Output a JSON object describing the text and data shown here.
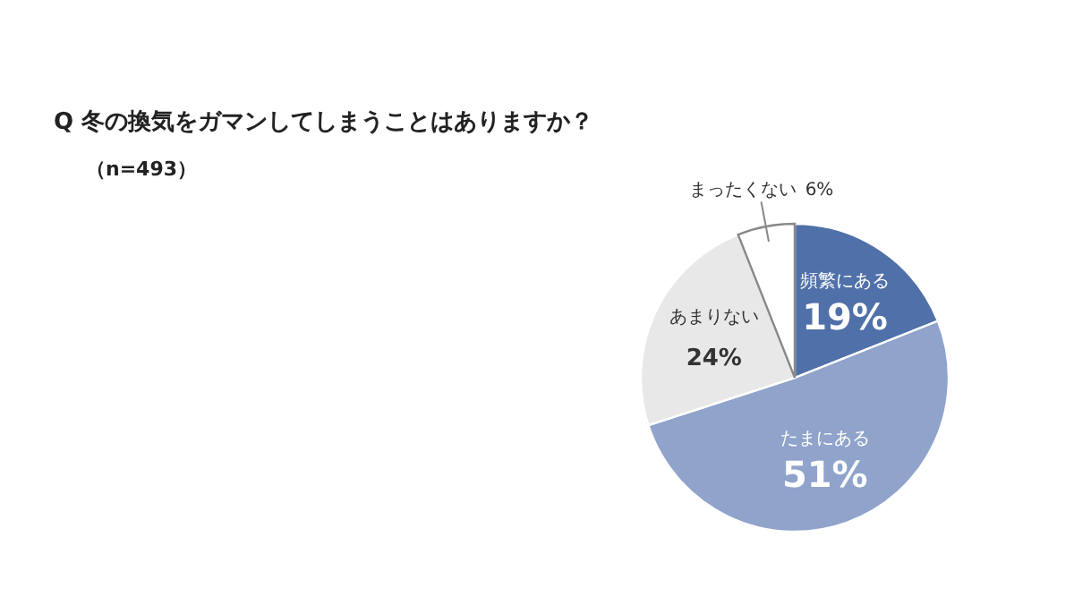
{
  "chart_data": {
    "type": "pie",
    "title": "Q 冬の換気をガマンしてしまうことはありますか？",
    "subtitle": "（n=493）",
    "categories": [
      "頻繁にある",
      "たまにある",
      "あまりない",
      "まったくない"
    ],
    "values": [
      19,
      51,
      24,
      6
    ],
    "value_labels": [
      "19%",
      "51%",
      "24%",
      "6%"
    ],
    "colors": [
      "#4f70a8",
      "#8fa3cb",
      "#e8e8e8",
      "#ffffff"
    ],
    "legend": false
  }
}
